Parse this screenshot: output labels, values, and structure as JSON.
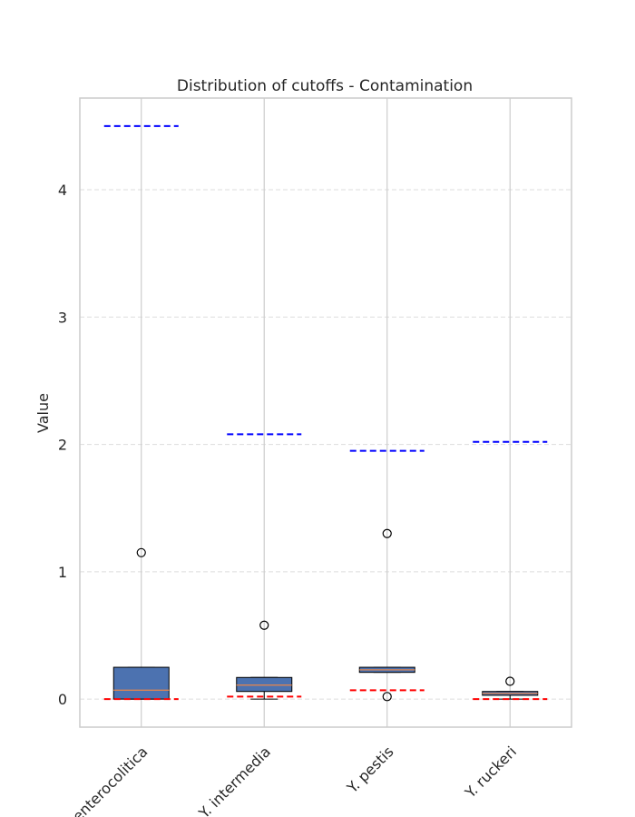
{
  "chart_data": {
    "type": "box",
    "title": "Distribution of cutoffs - Contamination",
    "xlabel": "",
    "ylabel": "Value",
    "ylim": [
      -0.22,
      4.72
    ],
    "yticks": [
      0,
      1,
      2,
      3,
      4
    ],
    "grid": true,
    "categories": [
      "Y. enterocolitica",
      "Y. intermedia",
      "Y. pestis",
      "Y. ruckeri"
    ],
    "boxes": [
      {
        "category": "Y. enterocolitica",
        "whisker_low": 0.0,
        "q1": 0.0,
        "median": 0.07,
        "q3": 0.25,
        "whisker_high": 0.25,
        "outliers": [
          1.15
        ],
        "upper_cutoff": 4.5,
        "lower_cutoff": 0.0
      },
      {
        "category": "Y. intermedia",
        "whisker_low": 0.0,
        "q1": 0.06,
        "median": 0.11,
        "q3": 0.17,
        "whisker_high": 0.17,
        "outliers": [
          0.58
        ],
        "upper_cutoff": 2.08,
        "lower_cutoff": 0.02
      },
      {
        "category": "Y. pestis",
        "whisker_low": 0.21,
        "q1": 0.21,
        "median": 0.23,
        "q3": 0.25,
        "whisker_high": 0.25,
        "outliers": [
          1.3,
          0.02
        ],
        "upper_cutoff": 1.95,
        "lower_cutoff": 0.07
      },
      {
        "category": "Y. ruckeri",
        "whisker_low": 0.0,
        "q1": 0.03,
        "median": 0.045,
        "q3": 0.06,
        "whisker_high": 0.06,
        "outliers": [
          0.14
        ],
        "upper_cutoff": 2.02,
        "lower_cutoff": 0.0
      }
    ],
    "colors": {
      "box_fill": "#4c72b0",
      "median": "#dd8452",
      "upper_cutoff_line": "#0000ff",
      "lower_cutoff_line": "#ff0000",
      "grid": "#dddddd",
      "frame": "#cccccc"
    }
  }
}
